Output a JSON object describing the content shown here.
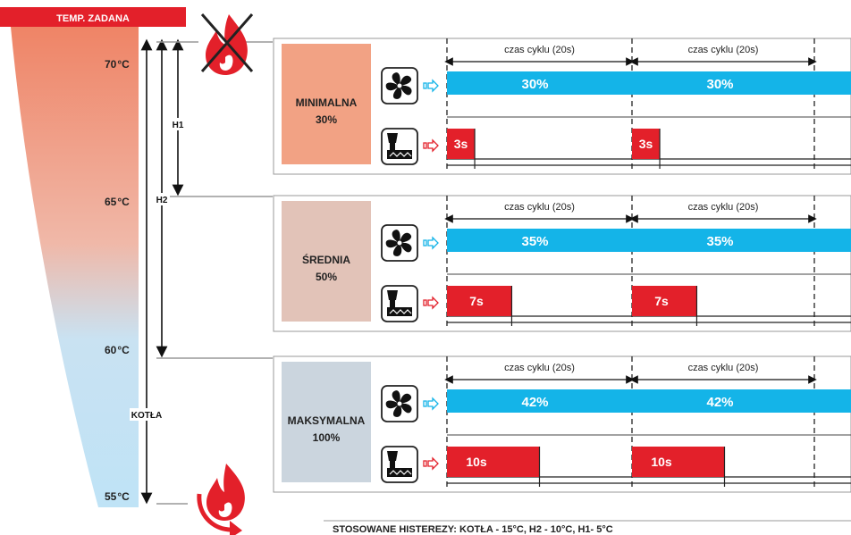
{
  "header": {
    "label": "TEMP. ZADANA"
  },
  "scale": {
    "temps": [
      {
        "value": "70",
        "unit": "°C"
      },
      {
        "value": "65",
        "unit": "°C"
      },
      {
        "value": "60",
        "unit": "°C"
      },
      {
        "value": "55",
        "unit": "°C"
      }
    ],
    "hysteresis_labels": {
      "h1": "H1",
      "h2": "H2",
      "kotla": "KOTŁA"
    }
  },
  "levels": [
    {
      "name": "MINIMALNA",
      "percent": "30%",
      "swatch_color": "#f2a284",
      "cycle_label": "czas cyklu (20s)",
      "fan": [
        "30%",
        "30%"
      ],
      "feeder": [
        "3s",
        "3s"
      ],
      "feeder_seconds": 3
    },
    {
      "name": "ŚREDNIA",
      "percent": "50%",
      "swatch_color": "#e2c3b8",
      "cycle_label": "czas cyklu (20s)",
      "fan": [
        "35%",
        "35%"
      ],
      "feeder": [
        "7s",
        "7s"
      ],
      "feeder_seconds": 7
    },
    {
      "name": "MAKSYMALNA",
      "percent": "100%",
      "swatch_color": "#cbd5de",
      "cycle_label": "czas cyklu (20s)",
      "fan": [
        "42%",
        "42%"
      ],
      "feeder": [
        "10s",
        "10s"
      ],
      "feeder_seconds": 10
    }
  ],
  "footer": {
    "text": "STOSOWANE HISTEREZY:  KOTŁA - 15°C,    H2 - 10°C,    H1- 5°C"
  },
  "colors": {
    "header_red": "#e3202a",
    "fan_bar": "#14b4e8",
    "feeder_bar": "#e3202a",
    "scale_top": "#ef8466",
    "scale_bottom": "#bfe3f6",
    "flame": "#e3202a"
  },
  "icons": {
    "fan": "fan-icon",
    "feeder": "feeder-icon",
    "flame_off": "flame-off-icon",
    "flame_restart": "flame-restart-icon"
  },
  "cycle_seconds": 20
}
